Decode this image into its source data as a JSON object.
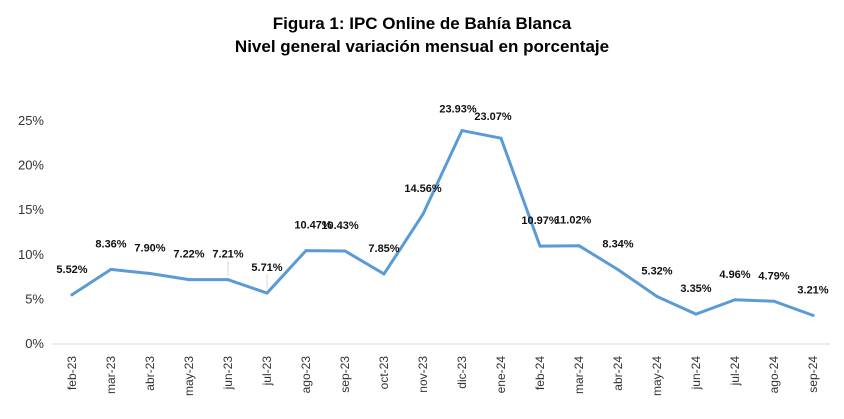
{
  "chart_data": {
    "type": "line",
    "title": "Figura 1: IPC Online de Bahía Blanca",
    "subtitle": "Nivel general variación mensual en porcentaje",
    "categories": [
      "feb-23",
      "mar-23",
      "abr-23",
      "may-23",
      "jun-23",
      "jul-23",
      "ago-23",
      "sep-23",
      "oct-23",
      "nov-23",
      "dic-23",
      "ene-24",
      "feb-24",
      "mar-24",
      "abr-24",
      "may-24",
      "jun-24",
      "jul-24",
      "ago-24",
      "sep-24"
    ],
    "series": [
      {
        "values": [
          5.52,
          8.36,
          7.9,
          7.22,
          7.21,
          5.71,
          10.47,
          10.43,
          7.85,
          14.56,
          23.93,
          23.07,
          10.97,
          11.02,
          8.34,
          5.32,
          3.35,
          4.96,
          4.79,
          3.21
        ],
        "labels": [
          "5.52%",
          "8.36%",
          "7.90%",
          "7.22%",
          "7.21%",
          "5.71%",
          "10.47%",
          "10.43%",
          "7.85%",
          "14.56%",
          "23.93%",
          "23.07%",
          "10.97%",
          "11.02%",
          "8.34%",
          "5.32%",
          "3.35%",
          "4.96%",
          "4.79%",
          "3.21%"
        ],
        "color": "#5b9bd5"
      }
    ],
    "yticks": [
      "0%",
      "5%",
      "10%",
      "15%",
      "20%",
      "25%"
    ],
    "ylim": [
      0,
      25
    ],
    "grid": false,
    "legend": "none"
  }
}
